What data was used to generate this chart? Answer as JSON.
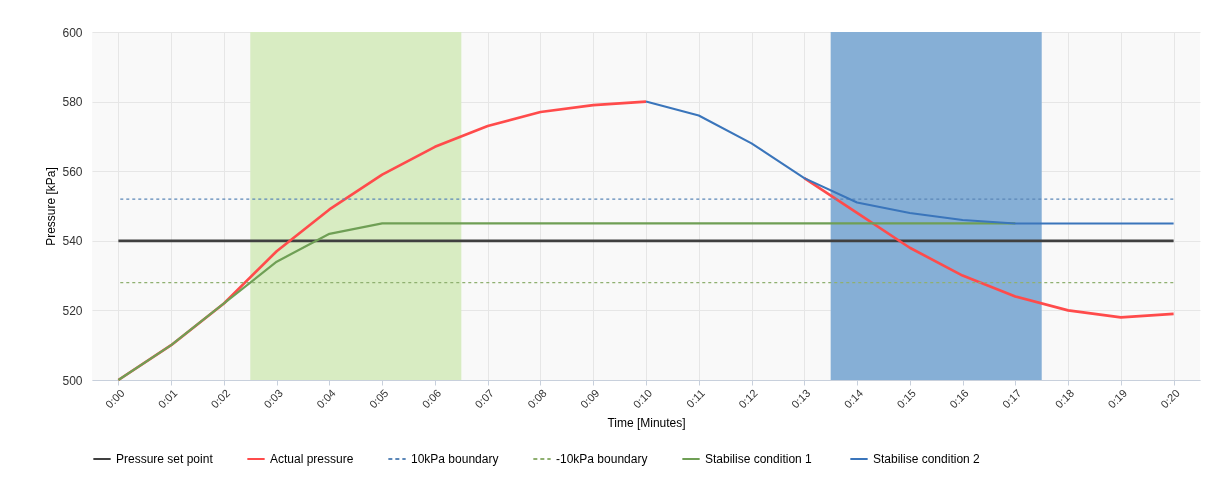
{
  "chart_data": {
    "type": "line",
    "xlabel": "Time [Minutes]",
    "ylabel": "Pressure [kPa]",
    "x": [
      0,
      1,
      2,
      3,
      4,
      5,
      6,
      7,
      8,
      9,
      10,
      11,
      12,
      13,
      14,
      15,
      16,
      17,
      18,
      19,
      20
    ],
    "xlim": [
      -0.5,
      20.5
    ],
    "xticks": [
      {
        "value": 0,
        "label": "0:00"
      },
      {
        "value": 1,
        "label": "0:01"
      },
      {
        "value": 2,
        "label": "0:02"
      },
      {
        "value": 3,
        "label": "0:03"
      },
      {
        "value": 4,
        "label": "0:04"
      },
      {
        "value": 5,
        "label": "0:05"
      },
      {
        "value": 6,
        "label": "0:06"
      },
      {
        "value": 7,
        "label": "0:07"
      },
      {
        "value": 8,
        "label": "0:08"
      },
      {
        "value": 9,
        "label": "0:09"
      },
      {
        "value": 10,
        "label": "0:10"
      },
      {
        "value": 11,
        "label": "0:11"
      },
      {
        "value": 12,
        "label": "0:12"
      },
      {
        "value": 13,
        "label": "0:13"
      },
      {
        "value": 14,
        "label": "0:14"
      },
      {
        "value": 15,
        "label": "0:15"
      },
      {
        "value": 16,
        "label": "0:16"
      },
      {
        "value": 17,
        "label": "0:17"
      },
      {
        "value": 18,
        "label": "0:18"
      },
      {
        "value": 19,
        "label": "0:19"
      },
      {
        "value": 20,
        "label": "0:20"
      }
    ],
    "ylim": [
      500,
      600
    ],
    "yticks": [
      500,
      520,
      540,
      560,
      580,
      600
    ],
    "grid": true,
    "legend": "bottom",
    "marker": "none",
    "bands": [
      {
        "axis": "x",
        "from": 2.5,
        "to": 6.5,
        "color": "#d8ecc2"
      },
      {
        "axis": "x",
        "from": 13.5,
        "to": 17.5,
        "color": "#86afd6"
      }
    ],
    "series": [
      {
        "name": "Pressure set point",
        "color": "#404040",
        "line_style": "solid",
        "values": [
          540,
          540,
          540,
          540,
          540,
          540,
          540,
          540,
          540,
          540,
          540,
          540,
          540,
          540,
          540,
          540,
          540,
          540,
          540,
          540,
          540
        ]
      },
      {
        "name": "Actual pressure",
        "color": "#ff4b4b",
        "line_style": "solid",
        "values": [
          500,
          510,
          522,
          537,
          549,
          559,
          567,
          573,
          577,
          579,
          580,
          null,
          null,
          558,
          548,
          538,
          530,
          524,
          520,
          518,
          519
        ]
      },
      {
        "name": "10kPa boundary",
        "color": "#5b87b8",
        "line_style": "dashed",
        "values": [
          552,
          552,
          552,
          552,
          552,
          552,
          552,
          552,
          552,
          552,
          552,
          552,
          552,
          552,
          552,
          552,
          552,
          552,
          552,
          552,
          552
        ]
      },
      {
        "name": "-10kPa boundary",
        "color": "#8fb070",
        "line_style": "dashed",
        "values": [
          528,
          528,
          528,
          528,
          528,
          528,
          528,
          528,
          528,
          528,
          528,
          528,
          528,
          528,
          528,
          528,
          528,
          528,
          528,
          528,
          528
        ]
      },
      {
        "name": "Stabilise condition  1",
        "color": "#6f9f55",
        "line_style": "solid",
        "values": [
          500,
          510,
          522,
          534,
          542,
          545,
          545,
          545,
          545,
          545,
          545,
          545,
          545,
          545,
          545,
          545,
          545,
          545,
          null,
          null,
          null
        ]
      },
      {
        "name": "Stabilise condition  2",
        "color": "#3a75bb",
        "line_style": "solid",
        "values": [
          null,
          null,
          null,
          null,
          null,
          null,
          null,
          null,
          null,
          null,
          580,
          576,
          568,
          558,
          551,
          548,
          546,
          545,
          545,
          545,
          545
        ]
      }
    ]
  }
}
